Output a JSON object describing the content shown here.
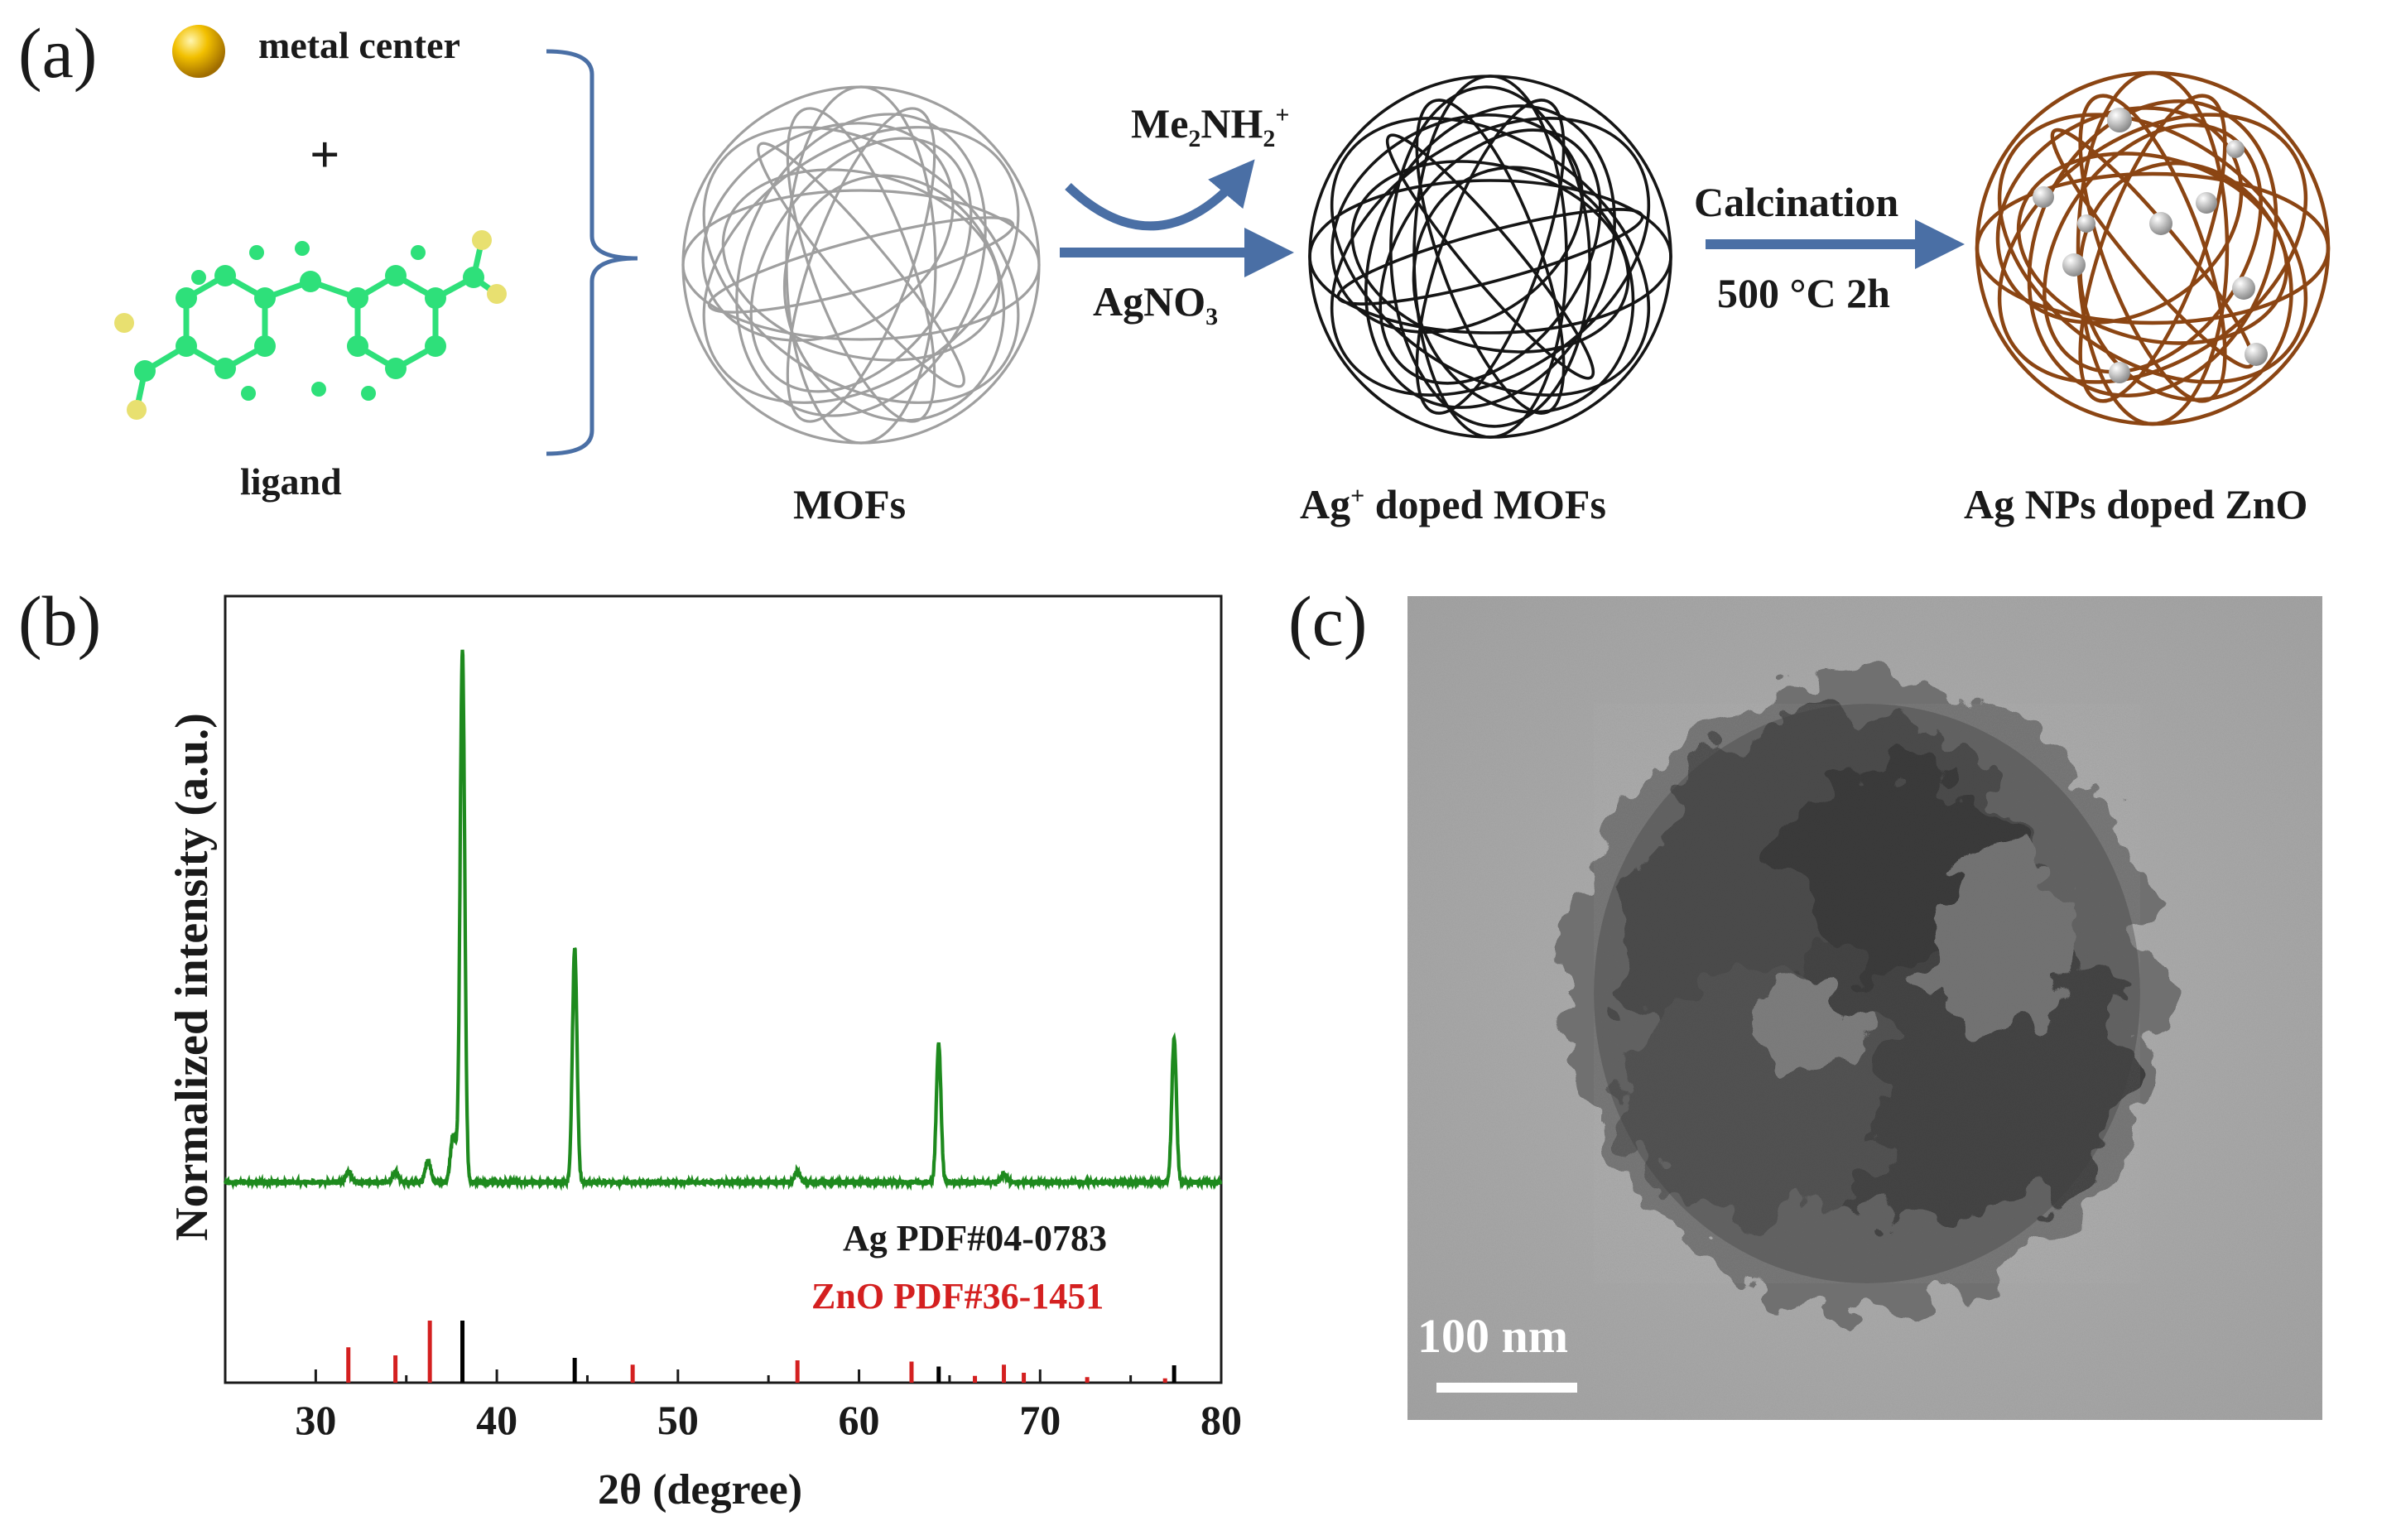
{
  "panel_a": {
    "letter": "(a)",
    "metal_center": "metal center",
    "plus": "+",
    "ligand": "ligand",
    "mofs": "MOFs",
    "ag_doped_mofs_prefix": "Ag",
    "ag_doped_mofs_sup": "+",
    "ag_doped_mofs_suffix": " doped MOFs",
    "ag_nps_zno": "Ag NPs doped ZnO",
    "byproduct_main": "Me",
    "byproduct_sub1": "2",
    "byproduct_mid": "NH",
    "byproduct_sub2": "2",
    "byproduct_sup": "+",
    "reagent_main": "AgNO",
    "reagent_sub": "3",
    "calcination": "Calcination",
    "conditions": "500 °C 2h",
    "colors": {
      "mof": "#9a9a9a",
      "doped": "#151515",
      "zno": "#8b4513",
      "arrow": "#4a6fa5",
      "ligand": "#2ee07a"
    }
  },
  "panel_b": {
    "letter": "(b)",
    "chart_data": {
      "type": "line",
      "xlabel": "2θ (degree)",
      "ylabel": "Normalized intensity (a.u.)",
      "xlim": [
        25,
        80
      ],
      "xticks": [
        "30",
        "40",
        "50",
        "60",
        "70",
        "80"
      ],
      "xtick_values": [
        30,
        40,
        50,
        60,
        70,
        80
      ],
      "series": [
        {
          "name": "Ag NPs doped ZnO",
          "color": "#1e8a1e",
          "peaks": [
            {
              "x": 31.8,
              "h": 0.02
            },
            {
              "x": 34.4,
              "h": 0.02
            },
            {
              "x": 36.2,
              "h": 0.04
            },
            {
              "x": 37.6,
              "h": 0.09
            },
            {
              "x": 38.1,
              "h": 1.0
            },
            {
              "x": 44.3,
              "h": 0.44
            },
            {
              "x": 56.6,
              "h": 0.02
            },
            {
              "x": 64.4,
              "h": 0.26
            },
            {
              "x": 68.0,
              "h": 0.015
            },
            {
              "x": 77.4,
              "h": 0.27
            }
          ]
        }
      ],
      "references": [
        {
          "name": "Ag PDF#04-0783",
          "color": "#000000",
          "x": [
            38.1,
            44.3,
            64.4,
            77.4
          ],
          "h": [
            1.0,
            0.4,
            0.26,
            0.28
          ]
        },
        {
          "name": "ZnO PDF#36-1451",
          "color": "#d42020",
          "x": [
            31.8,
            34.4,
            36.3,
            47.5,
            56.6,
            62.9,
            66.4,
            68.0,
            69.1,
            72.6,
            76.9
          ],
          "h": [
            0.57,
            0.44,
            1.0,
            0.29,
            0.36,
            0.34,
            0.11,
            0.29,
            0.16,
            0.09,
            0.07
          ]
        }
      ]
    }
  },
  "panel_c": {
    "letter": "(c)",
    "scale_bar": "100 nm"
  }
}
